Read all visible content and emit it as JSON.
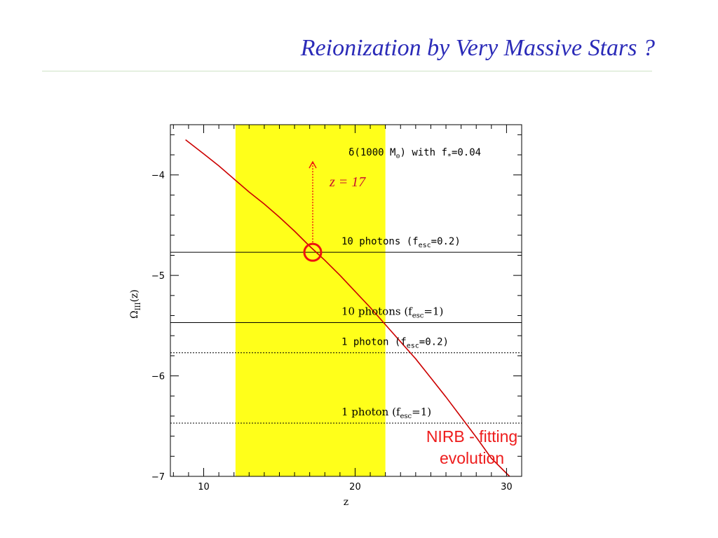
{
  "slide": {
    "title": "Reionization by Very Massive Stars ?"
  },
  "colors": {
    "title": "#2b2bb8",
    "curve": "#cc0000",
    "band": "#ffff1a",
    "marker": "#ee1111",
    "annotation_red": "#ee1c1c"
  },
  "chart_data": {
    "type": "line",
    "title": "",
    "xlabel": "z",
    "ylabel": {
      "base": "Ω",
      "sub": "III",
      "rest": "(z)"
    },
    "xlim": [
      7.8,
      31
    ],
    "ylim": [
      -7,
      -3.5
    ],
    "xticks": [
      {
        "value": 10,
        "label": "10"
      },
      {
        "value": 20,
        "label": "20"
      },
      {
        "value": 30,
        "label": "30"
      }
    ],
    "yticks": [
      {
        "value": -4,
        "label": "−4"
      },
      {
        "value": -5,
        "label": "−5"
      },
      {
        "value": -6,
        "label": "−6"
      },
      {
        "value": -7,
        "label": "−7"
      }
    ],
    "grid": false,
    "shaded_band": {
      "x": [
        12.1,
        22
      ]
    },
    "series": [
      {
        "x": [
          8.8,
          10,
          11,
          12,
          13,
          14,
          15,
          16,
          17,
          18,
          19,
          20,
          21,
          22,
          23,
          24,
          25,
          26,
          27,
          28,
          29,
          30.2
        ],
        "y": [
          -3.65,
          -3.79,
          -3.91,
          -4.04,
          -4.17,
          -4.29,
          -4.42,
          -4.56,
          -4.71,
          -4.85,
          -5.0,
          -5.16,
          -5.32,
          -5.49,
          -5.66,
          -5.83,
          -6.02,
          -6.21,
          -6.41,
          -6.61,
          -6.82,
          -7.0
        ]
      }
    ],
    "hlines": [
      {
        "id": "ten-photons-fesc-0-2",
        "y": -4.77,
        "style": "solid",
        "font": "mono",
        "label_main": "10 photons (f",
        "label_sub": "esc",
        "label_end": "=0.2)"
      },
      {
        "id": "ten-photons-fesc-1",
        "y": -5.47,
        "style": "solid",
        "font": "serif",
        "label_main": "10 photons (f",
        "label_sub": "esc",
        "label_end": "=1)"
      },
      {
        "id": "one-photon-fesc-0-2",
        "y": -5.77,
        "style": "dotted",
        "font": "mono",
        "label_main": "1 photon (f",
        "label_sub": "esc",
        "label_end": "=0.2)"
      },
      {
        "id": "one-photon-fesc-1",
        "y": -6.47,
        "style": "dotted",
        "font": "serif",
        "label_main": "1 photon (f",
        "label_sub": "esc",
        "label_end": "=1)"
      }
    ],
    "legend_note": {
      "text_a": "δ(1000 M",
      "text_sub": "⊙",
      "text_b": ") with f",
      "text_sub2": "*",
      "text_c": "=0.04"
    },
    "marker": {
      "x": 17.2,
      "y": -4.77,
      "label": "z = 17"
    }
  },
  "annotation": {
    "line1": "NIRB - fitting",
    "line2": "evolution"
  }
}
